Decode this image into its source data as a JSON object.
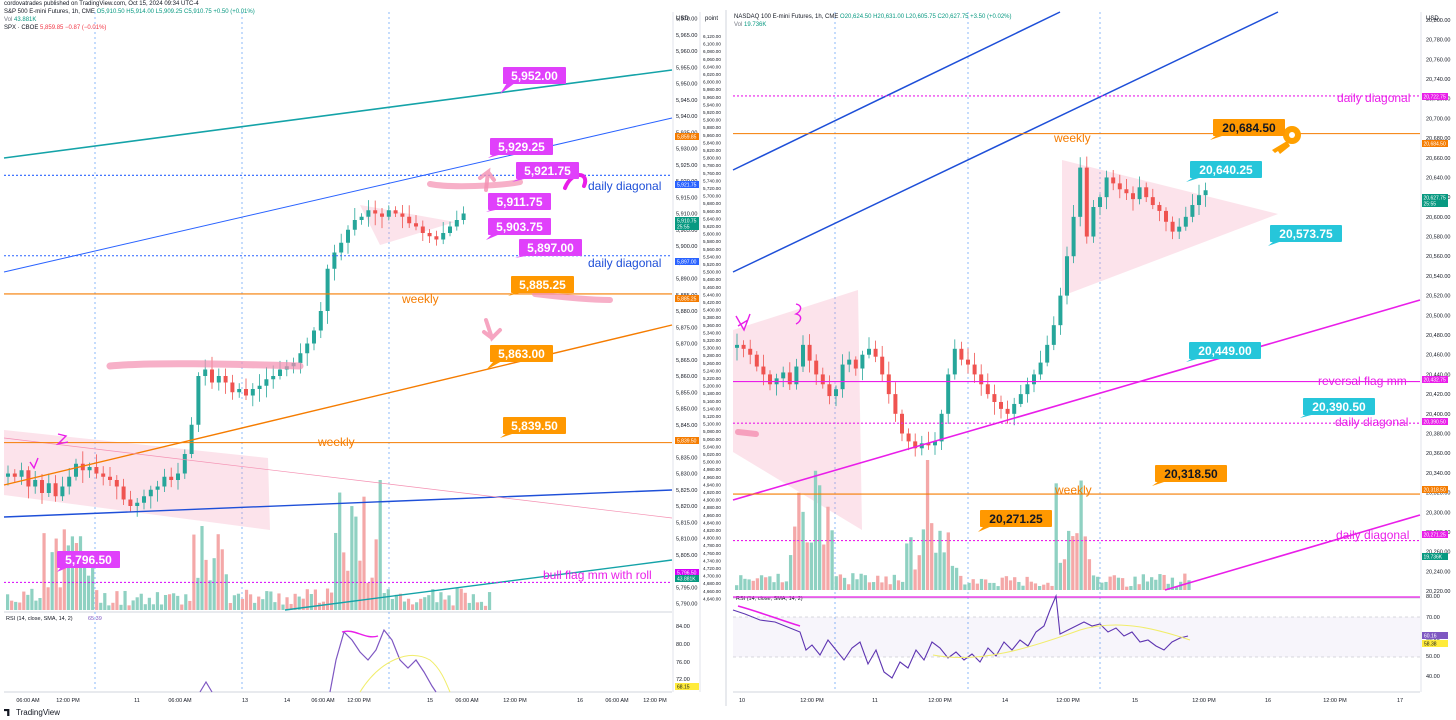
{
  "publisher": "cordovatrades published on TradingView.com, Oct 15, 2024 09:34 UTC-4",
  "brand": "TradingView",
  "chart_data": [
    {
      "type": "candlestick",
      "symbol": "S&P 500 E-mini Futures, 1h, CME",
      "ohlc": "O5,910.50 H5,914.00 L5,909.25 C5,910.75 +0.50 (+0.01%)",
      "volume_label": "Vol",
      "volume_value": "43.881K",
      "compare": "SPX · CBOE",
      "compare_values": "5,859.85 −0.87 (−0.01%)",
      "currency": "USD",
      "scale_header": "point",
      "y_axis_ticks": [
        "5,970.00",
        "5,965.00",
        "5,960.00",
        "5,955.00",
        "5,950.00",
        "5,945.00",
        "5,940.00",
        "5,935.00",
        "5,930.00",
        "5,925.00",
        "5,920.00",
        "5,915.00",
        "5,910.00",
        "5,905.00",
        "5,900.00",
        "5,895.00",
        "5,890.00",
        "5,885.00",
        "5,880.00",
        "5,875.00",
        "5,870.00",
        "5,865.00",
        "5,860.00",
        "5,855.00",
        "5,850.00",
        "5,845.00",
        "5,840.00",
        "5,835.00",
        "5,830.00",
        "5,825.00",
        "5,820.00",
        "5,815.00",
        "5,810.00",
        "5,805.00",
        "5,800.00",
        "5,795.00",
        "5,790.00"
      ],
      "point_axis_ticks": [
        "6,120.00",
        "6,100.00",
        "6,080.00",
        "6,060.00",
        "6,040.00",
        "6,020.00",
        "6,000.00",
        "5,980.00",
        "5,960.00",
        "5,940.00",
        "5,920.00",
        "5,900.00",
        "5,880.00",
        "5,860.00",
        "5,840.00",
        "5,820.00",
        "5,800.00",
        "5,780.00",
        "5,760.00",
        "5,740.00",
        "5,720.00",
        "5,700.00",
        "5,680.00",
        "5,660.00",
        "5,640.00",
        "5,620.00",
        "5,600.00",
        "5,580.00",
        "5,560.00",
        "5,540.00",
        "5,520.00",
        "5,500.00",
        "5,480.00",
        "5,460.00",
        "5,440.00",
        "5,420.00",
        "5,400.00",
        "5,380.00",
        "5,360.00",
        "5,340.00",
        "5,320.00",
        "5,300.00",
        "5,280.00",
        "5,260.00",
        "5,240.00",
        "5,220.00",
        "5,200.00",
        "5,180.00",
        "5,160.00",
        "5,140.00",
        "5,120.00",
        "5,100.00",
        "5,080.00",
        "5,060.00",
        "5,040.00",
        "5,020.00",
        "5,000.00",
        "4,980.00",
        "4,960.00",
        "4,940.00",
        "4,920.00",
        "4,900.00",
        "4,880.00",
        "4,860.00",
        "4,840.00",
        "4,820.00",
        "4,800.00",
        "4,780.00",
        "4,760.00",
        "4,740.00",
        "4,720.00",
        "4,700.00",
        "4,680.00",
        "4,660.00",
        "4,640.00"
      ],
      "ylim": [
        5788,
        5972
      ],
      "x_axis_ticks": [
        "06:00 AM",
        "12:00 PM",
        "11",
        "06:00 AM",
        "13",
        "14",
        "06:00 AM",
        "12:00 PM",
        "15",
        "06:00 AM",
        "12:00 PM",
        "16",
        "06:00 AM",
        "12:00 PM"
      ],
      "price_labels": [
        {
          "text": "5,921.75",
          "bg": "#2962ff"
        },
        {
          "text": "5,910.75",
          "bg": "#089981"
        },
        {
          "text": "25:55",
          "bg": "#089981"
        },
        {
          "text": "5,897.00",
          "bg": "#2962ff"
        },
        {
          "text": "5,885.25",
          "bg": "#f57c00"
        },
        {
          "text": "5,859.85",
          "bg": "#f57c00"
        },
        {
          "text": "5,839.50",
          "bg": "#f57c00"
        },
        {
          "text": "5,796.50",
          "bg": "#d500f9"
        },
        {
          "text": "43.881K",
          "bg": "#089981"
        }
      ],
      "callouts": [
        {
          "text": "5,952.00",
          "color": "#e040fb"
        },
        {
          "text": "5,929.25",
          "color": "#e040fb"
        },
        {
          "text": "5,921.75",
          "color": "#e040fb"
        },
        {
          "text": "5,911.75",
          "color": "#e040fb"
        },
        {
          "text": "5,903.75",
          "color": "#e040fb"
        },
        {
          "text": "5,897.00",
          "color": "#e040fb"
        },
        {
          "text": "5,885.25",
          "color": "#ff9800"
        },
        {
          "text": "5,863.00",
          "color": "#ff9800"
        },
        {
          "text": "5,839.50",
          "color": "#ff9800"
        },
        {
          "text": "5,796.50",
          "color": "#e040fb"
        }
      ],
      "level_labels": [
        {
          "text": "daily diagonal",
          "color": "#1e4fd8"
        },
        {
          "text": "daily diagonal",
          "color": "#1e4fd8"
        },
        {
          "text": "weekly",
          "color": "#f57c00"
        },
        {
          "text": "weekly",
          "color": "#f57c00"
        },
        {
          "text": "bull flag mm with roll",
          "color": "#e91ee9"
        }
      ],
      "rsi": {
        "label": "RSI (14, close, SMA, 14, 2)",
        "values_text": "65.39",
        "ticks": [
          "84.00",
          "80.00",
          "76.00",
          "72.00"
        ],
        "current": "68.15"
      }
    },
    {
      "type": "candlestick",
      "symbol": "NASDAQ 100 E-mini Futures, 1h, CME",
      "ohlc": "O20,624.50 H20,631.00 L20,605.75 C20,627.75 +3.50 (+0.02%)",
      "volume_label": "Vol",
      "volume_value": "19.736K",
      "currency": "USD",
      "y_axis_ticks": [
        "20,800.00",
        "20,780.00",
        "20,760.00",
        "20,740.00",
        "20,720.00",
        "20,700.00",
        "20,680.00",
        "20,660.00",
        "20,640.00",
        "20,620.00",
        "20,600.00",
        "20,580.00",
        "20,560.00",
        "20,540.00",
        "20,520.00",
        "20,500.00",
        "20,480.00",
        "20,460.00",
        "20,440.00",
        "20,420.00",
        "20,400.00",
        "20,380.00",
        "20,360.00",
        "20,340.00",
        "20,320.00",
        "20,300.00",
        "20,280.00",
        "20,260.00",
        "20,240.00",
        "20,220.00"
      ],
      "ylim": [
        20215,
        20808
      ],
      "x_axis_ticks": [
        "10",
        "12:00 PM",
        "11",
        "12:00 PM",
        "14",
        "12:00 PM",
        "15",
        "12:00 PM",
        "16",
        "12:00 PM",
        "17"
      ],
      "price_labels": [
        {
          "text": "20,722.75",
          "bg": "#e91ee9"
        },
        {
          "text": "20,684.50",
          "bg": "#f57c00"
        },
        {
          "text": "20,627.75",
          "bg": "#089981"
        },
        {
          "text": "25:55",
          "bg": "#089981"
        },
        {
          "text": "20,432.75",
          "bg": "#e91ee9"
        },
        {
          "text": "20,390.50",
          "bg": "#e91ee9"
        },
        {
          "text": "20,318.50",
          "bg": "#f57c00"
        },
        {
          "text": "20,271.25",
          "bg": "#e91ee9"
        },
        {
          "text": "19.736K",
          "bg": "#089981"
        }
      ],
      "callouts": [
        {
          "text": "20,684.50",
          "color": "#ff9800"
        },
        {
          "text": "20,640.25",
          "color": "#26c6da"
        },
        {
          "text": "20,573.75",
          "color": "#26c6da"
        },
        {
          "text": "20,449.00",
          "color": "#26c6da"
        },
        {
          "text": "20,390.50",
          "color": "#26c6da"
        },
        {
          "text": "20,318.50",
          "color": "#ff9800"
        },
        {
          "text": "20,271.25",
          "color": "#ff9800"
        }
      ],
      "level_labels": [
        {
          "text": "daily diagonal",
          "color": "#e91ee9"
        },
        {
          "text": "weekly",
          "color": "#f57c00"
        },
        {
          "text": "reversal flag mm",
          "color": "#e91ee9"
        },
        {
          "text": "daily diagonal",
          "color": "#e91ee9"
        },
        {
          "text": "weekly",
          "color": "#f57c00"
        },
        {
          "text": "daily diagonal",
          "color": "#e91ee9"
        }
      ],
      "rsi": {
        "label": "RSI (14, close, SMA, 14, 2)",
        "ticks": [
          "80.00",
          "70.00",
          "60.00",
          "50.00",
          "40.00"
        ],
        "current": "60.16",
        "sma": "58.38"
      }
    }
  ]
}
